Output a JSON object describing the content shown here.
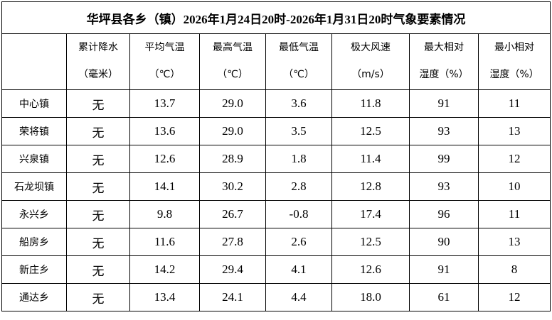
{
  "title": "华坪县各乡（镇）2026年1月24日20时-2026年1月31日20时气象要素情况",
  "columns": [
    [
      "累计降水",
      "（毫米）"
    ],
    [
      "平均气温",
      "（℃）"
    ],
    [
      "最高气温",
      "（℃）"
    ],
    [
      "最低气温",
      "（℃）"
    ],
    [
      "极大风速",
      "（m/s）"
    ],
    [
      "最大相对",
      "湿度（%）"
    ],
    [
      "最小相对",
      "湿度（%）"
    ]
  ],
  "rows": [
    [
      "中心镇",
      "无",
      "13.7",
      "29.0",
      "3.6",
      "11.8",
      "91",
      "11"
    ],
    [
      "荣将镇",
      "无",
      "13.6",
      "29.0",
      "3.5",
      "12.5",
      "93",
      "13"
    ],
    [
      "兴泉镇",
      "无",
      "12.6",
      "28.9",
      "1.8",
      "11.4",
      "99",
      "12"
    ],
    [
      "石龙坝镇",
      "无",
      "14.1",
      "30.2",
      "2.8",
      "12.8",
      "93",
      "10"
    ],
    [
      "永兴乡",
      "无",
      "9.8",
      "26.7",
      "-0.8",
      "17.4",
      "96",
      "11"
    ],
    [
      "船房乡",
      "无",
      "11.6",
      "27.8",
      "2.6",
      "12.5",
      "90",
      "13"
    ],
    [
      "新庄乡",
      "无",
      "14.2",
      "29.4",
      "4.1",
      "12.6",
      "91",
      "8"
    ],
    [
      "通达乡",
      "无",
      "13.4",
      "24.1",
      "4.4",
      "18.0",
      "61",
      "12"
    ]
  ]
}
